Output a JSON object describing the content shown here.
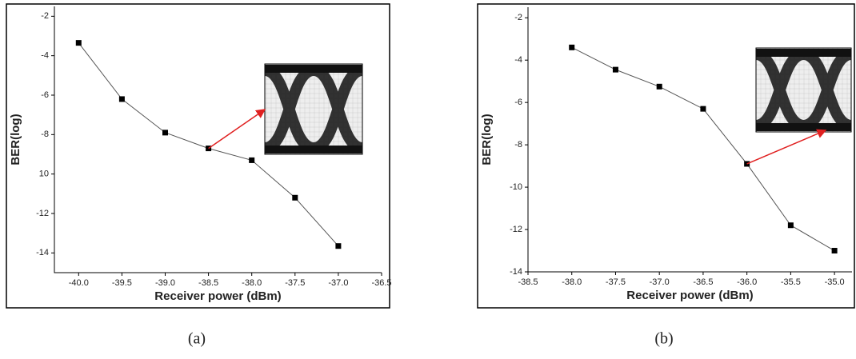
{
  "chart_data": [
    {
      "type": "line",
      "caption": "(a)",
      "x_label": "Receiver power (dBm)",
      "y_label": "BER(log)",
      "x": [
        -40.0,
        -39.5,
        -39.0,
        -38.5,
        -38.0,
        -37.5,
        -37.0
      ],
      "series": [
        {
          "color": "#555555",
          "values": [
            -3.35,
            -6.2,
            -7.9,
            -8.7,
            -9.3,
            -11.2,
            -13.65
          ]
        }
      ],
      "xlim": [
        -40.28,
        -36.5
      ],
      "xticks": [
        {
          "value": -40.0,
          "label": "-40.0"
        },
        -39.5,
        {
          "value": -39.0,
          "label": "-39.0"
        },
        -38.5,
        {
          "value": -38.0,
          "label": "-38.0"
        },
        -37.5,
        {
          "value": -37.0,
          "label": "-37.0"
        },
        -36.5
      ],
      "ylim": [
        -15,
        -1.5
      ],
      "yticks": [
        -2,
        -4,
        -6,
        -8,
        {
          "value": -10,
          "label": "10"
        },
        -12,
        -14
      ]
    },
    {
      "type": "line",
      "caption": "(b)",
      "x_label": "Receiver power (dBm)",
      "y_label": "BER(log)",
      "x": [
        -38.0,
        -37.5,
        -37.0,
        -36.5,
        -36.0,
        -35.5,
        -35.0
      ],
      "series": [
        {
          "color": "#555555",
          "values": [
            -3.4,
            -4.45,
            -5.25,
            -6.3,
            -8.9,
            -11.8,
            -13.0
          ]
        }
      ],
      "xlim": [
        -38.5,
        -34.8
      ],
      "xticks": [
        -38.5,
        {
          "value": -38.0,
          "label": "-38.0"
        },
        -37.5,
        {
          "value": -37.0,
          "label": "-37.0"
        },
        -36.5,
        {
          "value": -36.0,
          "label": "-36.0"
        },
        -35.5,
        {
          "value": -35.0,
          "label": "-35.0"
        }
      ],
      "ylim": [
        -14,
        -1.5
      ],
      "yticks": [
        -2,
        -4,
        -6,
        -8,
        -10,
        -12,
        -14
      ]
    }
  ]
}
